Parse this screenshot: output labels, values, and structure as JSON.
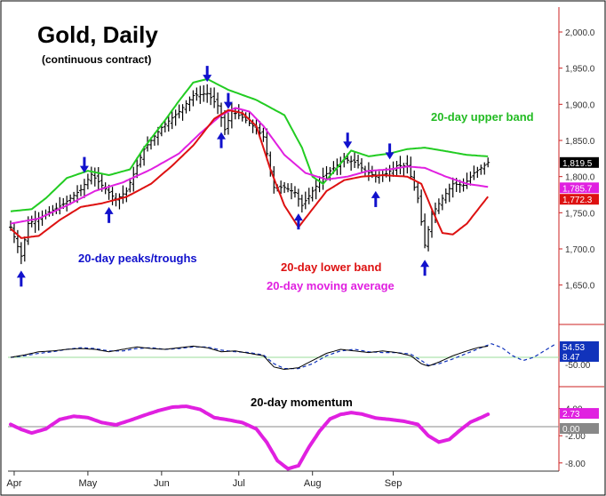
{
  "chart_data": [
    {
      "type": "ohlc",
      "title": "Gold, Daily",
      "subtitle": "(continuous contract)",
      "ylim": [
        1625,
        2025
      ],
      "y_ticks": [
        "2,000.0",
        "1,950.0",
        "1,900.0",
        "1,850.0",
        "1,800.0",
        "1,750.0",
        "1,700.0",
        "1,650.0"
      ],
      "y_tick_values": [
        2000,
        1950,
        1900,
        1850,
        1800,
        1750,
        1700,
        1650
      ],
      "x_ticks": [
        "Apr",
        "May",
        "Jun",
        "Jul",
        "Aug",
        "Sep"
      ],
      "last_values": [
        {
          "label": "1,819.5",
          "value": 1819.5,
          "color": "#000000"
        },
        {
          "label": "1,785.7",
          "value": 1785.7,
          "color": "#e020e0"
        },
        {
          "label": "1,772.3",
          "value": 1772.3,
          "color": "#dd1111"
        }
      ],
      "annotations": [
        {
          "text": "20-day upper band",
          "color": "#22bb22"
        },
        {
          "text": "20-day peaks/troughs",
          "color": "#1111cc"
        },
        {
          "text": "20-day lower band",
          "color": "#dd1111"
        },
        {
          "text": "20-day moving average",
          "color": "#e020e0"
        }
      ],
      "close_anchors": [
        [
          0,
          1730
        ],
        [
          3,
          1690
        ],
        [
          5,
          1735
        ],
        [
          10,
          1748
        ],
        [
          15,
          1762
        ],
        [
          20,
          1782
        ],
        [
          23,
          1803
        ],
        [
          26,
          1788
        ],
        [
          30,
          1768
        ],
        [
          33,
          1780
        ],
        [
          38,
          1838
        ],
        [
          43,
          1868
        ],
        [
          48,
          1890
        ],
        [
          52,
          1912
        ],
        [
          56,
          1915
        ],
        [
          59,
          1898
        ],
        [
          61,
          1865
        ],
        [
          63,
          1890
        ],
        [
          66,
          1882
        ],
        [
          69,
          1870
        ],
        [
          72,
          1855
        ],
        [
          75,
          1785
        ],
        [
          78,
          1785
        ],
        [
          81,
          1778
        ],
        [
          83,
          1760
        ],
        [
          86,
          1780
        ],
        [
          89,
          1800
        ],
        [
          92,
          1812
        ],
        [
          95,
          1824
        ],
        [
          98,
          1820
        ],
        [
          101,
          1808
        ],
        [
          104,
          1800
        ],
        [
          107,
          1804
        ],
        [
          110,
          1815
        ],
        [
          113,
          1815
        ],
        [
          116,
          1770
        ],
        [
          118,
          1705
        ],
        [
          120,
          1748
        ],
        [
          123,
          1770
        ],
        [
          126,
          1790
        ],
        [
          129,
          1788
        ],
        [
          132,
          1805
        ],
        [
          134,
          1812
        ],
        [
          136,
          1819.5
        ]
      ],
      "upper_band": [
        [
          0,
          1752
        ],
        [
          6,
          1755
        ],
        [
          10,
          1770
        ],
        [
          16,
          1798
        ],
        [
          22,
          1808
        ],
        [
          28,
          1802
        ],
        [
          34,
          1810
        ],
        [
          38,
          1840
        ],
        [
          44,
          1878
        ],
        [
          48,
          1905
        ],
        [
          52,
          1930
        ],
        [
          56,
          1935
        ],
        [
          62,
          1920
        ],
        [
          70,
          1906
        ],
        [
          78,
          1885
        ],
        [
          83,
          1840
        ],
        [
          86,
          1800
        ],
        [
          89,
          1790
        ],
        [
          93,
          1812
        ],
        [
          97,
          1836
        ],
        [
          102,
          1828
        ],
        [
          108,
          1832
        ],
        [
          113,
          1838
        ],
        [
          118,
          1840
        ],
        [
          123,
          1836
        ],
        [
          130,
          1830
        ],
        [
          136,
          1828
        ]
      ],
      "lower_band": [
        [
          0,
          1728
        ],
        [
          3,
          1715
        ],
        [
          8,
          1718
        ],
        [
          14,
          1740
        ],
        [
          20,
          1758
        ],
        [
          26,
          1763
        ],
        [
          33,
          1772
        ],
        [
          40,
          1790
        ],
        [
          46,
          1815
        ],
        [
          52,
          1843
        ],
        [
          58,
          1880
        ],
        [
          62,
          1892
        ],
        [
          66,
          1888
        ],
        [
          70,
          1870
        ],
        [
          74,
          1810
        ],
        [
          78,
          1760
        ],
        [
          82,
          1730
        ],
        [
          86,
          1755
        ],
        [
          90,
          1780
        ],
        [
          95,
          1795
        ],
        [
          100,
          1800
        ],
        [
          106,
          1802
        ],
        [
          113,
          1800
        ],
        [
          117,
          1790
        ],
        [
          120,
          1755
        ],
        [
          123,
          1722
        ],
        [
          126,
          1720
        ],
        [
          130,
          1735
        ],
        [
          136,
          1772.3
        ]
      ],
      "moving_average": [
        [
          0,
          1735
        ],
        [
          8,
          1742
        ],
        [
          16,
          1760
        ],
        [
          24,
          1780
        ],
        [
          32,
          1792
        ],
        [
          40,
          1810
        ],
        [
          48,
          1832
        ],
        [
          54,
          1860
        ],
        [
          60,
          1885
        ],
        [
          64,
          1895
        ],
        [
          68,
          1890
        ],
        [
          72,
          1870
        ],
        [
          78,
          1830
        ],
        [
          84,
          1805
        ],
        [
          90,
          1796
        ],
        [
          96,
          1800
        ],
        [
          102,
          1808
        ],
        [
          108,
          1810
        ],
        [
          113,
          1814
        ],
        [
          118,
          1812
        ],
        [
          124,
          1800
        ],
        [
          130,
          1790
        ],
        [
          136,
          1785.7
        ]
      ],
      "peak_trough_markers": [
        {
          "day": 3,
          "kind": "trough"
        },
        {
          "day": 21,
          "kind": "peak"
        },
        {
          "day": 28,
          "kind": "trough"
        },
        {
          "day": 56,
          "kind": "peak"
        },
        {
          "day": 62,
          "kind": "peak"
        },
        {
          "day": 60,
          "kind": "trough"
        },
        {
          "day": 82,
          "kind": "trough"
        },
        {
          "day": 96,
          "kind": "peak"
        },
        {
          "day": 104,
          "kind": "trough"
        },
        {
          "day": 108,
          "kind": "peak"
        },
        {
          "day": 118,
          "kind": "trough"
        }
      ]
    },
    {
      "type": "line",
      "title": "",
      "y_ticks": [
        "-50.00"
      ],
      "last_values": [
        {
          "label": "54.53",
          "color": "#000000"
        },
        {
          "label": "8.47",
          "color": "#1111cc"
        }
      ],
      "reference_line": 50,
      "series_solid": [
        [
          0,
          50
        ],
        [
          4,
          53
        ],
        [
          8,
          57
        ],
        [
          12,
          58
        ],
        [
          16,
          60
        ],
        [
          20,
          61
        ],
        [
          24,
          60
        ],
        [
          28,
          57
        ],
        [
          32,
          60
        ],
        [
          36,
          63
        ],
        [
          40,
          61
        ],
        [
          44,
          60
        ],
        [
          48,
          62
        ],
        [
          52,
          64
        ],
        [
          56,
          62
        ],
        [
          60,
          57
        ],
        [
          64,
          58
        ],
        [
          68,
          55
        ],
        [
          72,
          52
        ],
        [
          75,
          38
        ],
        [
          78,
          35
        ],
        [
          82,
          37
        ],
        [
          86,
          46
        ],
        [
          90,
          55
        ],
        [
          94,
          60
        ],
        [
          98,
          58
        ],
        [
          102,
          56
        ],
        [
          106,
          58
        ],
        [
          110,
          56
        ],
        [
          114,
          52
        ],
        [
          117,
          42
        ],
        [
          119,
          39
        ],
        [
          122,
          44
        ],
        [
          126,
          52
        ],
        [
          130,
          58
        ],
        [
          133,
          62
        ],
        [
          136,
          64
        ]
      ],
      "series_dashed": [
        [
          0,
          50
        ],
        [
          4,
          52
        ],
        [
          8,
          55
        ],
        [
          12,
          57
        ],
        [
          16,
          60
        ],
        [
          20,
          62
        ],
        [
          24,
          61
        ],
        [
          28,
          58
        ],
        [
          32,
          58
        ],
        [
          36,
          61
        ],
        [
          40,
          62
        ],
        [
          44,
          60
        ],
        [
          48,
          61
        ],
        [
          52,
          63
        ],
        [
          56,
          63
        ],
        [
          60,
          59
        ],
        [
          64,
          57
        ],
        [
          68,
          56
        ],
        [
          72,
          53
        ],
        [
          75,
          42
        ],
        [
          78,
          36
        ],
        [
          82,
          36
        ],
        [
          86,
          42
        ],
        [
          90,
          52
        ],
        [
          94,
          58
        ],
        [
          98,
          60
        ],
        [
          102,
          57
        ],
        [
          106,
          56
        ],
        [
          110,
          56
        ],
        [
          114,
          54
        ],
        [
          117,
          46
        ],
        [
          119,
          40
        ],
        [
          122,
          42
        ],
        [
          126,
          48
        ],
        [
          130,
          55
        ],
        [
          134,
          62
        ],
        [
          137,
          67
        ],
        [
          140,
          62
        ],
        [
          143,
          52
        ],
        [
          146,
          46
        ],
        [
          149,
          50
        ],
        [
          152,
          58
        ],
        [
          155,
          66
        ]
      ],
      "ylim": [
        20,
        80
      ]
    },
    {
      "type": "line",
      "title": "20-day momentum",
      "y_ticks": [
        "4.00",
        "-2.00",
        "-8.00"
      ],
      "y_tick_values": [
        4,
        -2,
        -8
      ],
      "last_values": [
        {
          "label": "2.73",
          "value": 2.73,
          "color": "#e020e0"
        },
        {
          "label": "0.00",
          "value": 0,
          "color": "#888888"
        }
      ],
      "ylim": [
        -10,
        6
      ],
      "series": [
        [
          0,
          0.5
        ],
        [
          3,
          -0.6
        ],
        [
          6,
          -1.4
        ],
        [
          10,
          -0.5
        ],
        [
          14,
          1.6
        ],
        [
          18,
          2.3
        ],
        [
          22,
          2.0
        ],
        [
          26,
          0.9
        ],
        [
          30,
          0.4
        ],
        [
          34,
          1.4
        ],
        [
          38,
          2.5
        ],
        [
          42,
          3.5
        ],
        [
          46,
          4.3
        ],
        [
          50,
          4.5
        ],
        [
          54,
          3.8
        ],
        [
          58,
          2.0
        ],
        [
          62,
          1.5
        ],
        [
          66,
          0.9
        ],
        [
          70,
          -0.5
        ],
        [
          73,
          -3.5
        ],
        [
          76,
          -7.5
        ],
        [
          79,
          -9.3
        ],
        [
          82,
          -8.6
        ],
        [
          85,
          -4.5
        ],
        [
          88,
          -1.0
        ],
        [
          91,
          1.7
        ],
        [
          94,
          2.7
        ],
        [
          97,
          3.1
        ],
        [
          100,
          2.8
        ],
        [
          104,
          1.9
        ],
        [
          108,
          1.6
        ],
        [
          112,
          1.2
        ],
        [
          116,
          0.5
        ],
        [
          119,
          -2.0
        ],
        [
          122,
          -3.4
        ],
        [
          125,
          -2.8
        ],
        [
          128,
          -0.8
        ],
        [
          131,
          1.0
        ],
        [
          134,
          2.0
        ],
        [
          136,
          2.73
        ]
      ]
    }
  ]
}
